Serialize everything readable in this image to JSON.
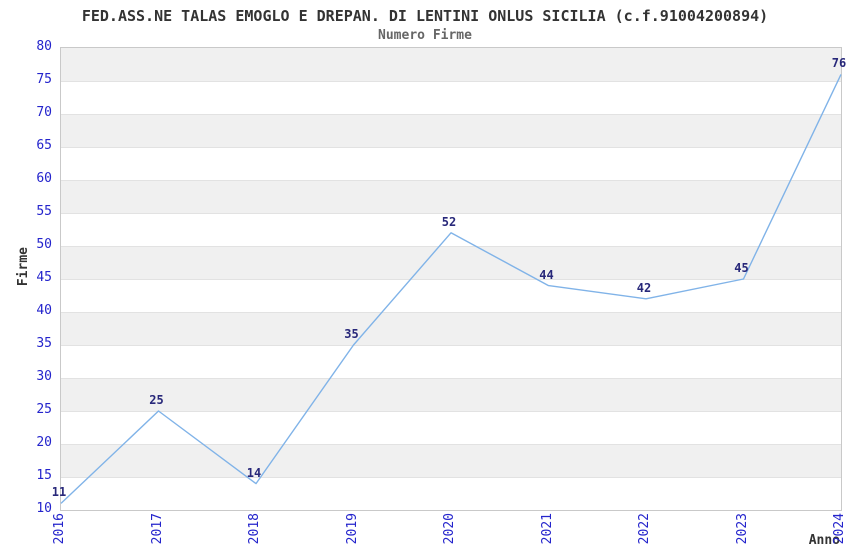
{
  "chart_data": {
    "type": "line",
    "title": "FED.ASS.NE TALAS EMOGLO E DREPAN. DI LENTINI ONLUS SICILIA (c.f.91004200894)",
    "subtitle": "Numero Firme",
    "xlabel": "Anno",
    "ylabel": "Firme",
    "categories": [
      "2016",
      "2017",
      "2018",
      "2019",
      "2020",
      "2021",
      "2022",
      "2023",
      "2024"
    ],
    "values": [
      11,
      25,
      14,
      35,
      52,
      44,
      42,
      45,
      76
    ],
    "ylim": [
      10,
      80
    ],
    "ytick_step": 5,
    "grid": "horizontal-bands-alternating",
    "legend": "none",
    "colors": {
      "line": "#80b3e8",
      "tick_label": "#2424cc",
      "data_label": "#28287a",
      "band": "#f0f0f0",
      "gridline": "#e2e2e2",
      "border": "#c9c9c9",
      "title": "#333333",
      "subtitle": "#666666",
      "axis_title": "#333333",
      "background": "#ffffff"
    }
  }
}
